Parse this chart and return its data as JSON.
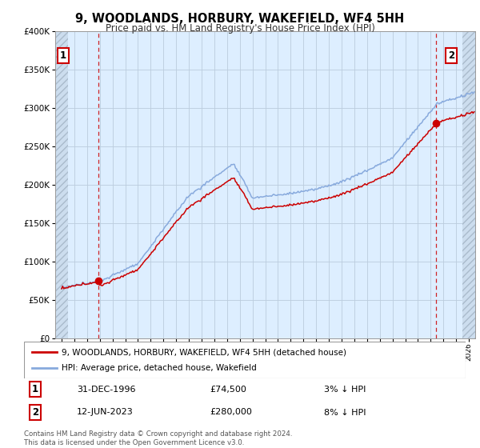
{
  "title": "9, WOODLANDS, HORBURY, WAKEFIELD, WF4 5HH",
  "subtitle": "Price paid vs. HM Land Registry's House Price Index (HPI)",
  "sale1_date": "31-DEC-1996",
  "sale1_price": 74500,
  "sale1_label": "1",
  "sale1_pct": "3% ↓ HPI",
  "sale2_date": "12-JUN-2023",
  "sale2_price": 280000,
  "sale2_label": "2",
  "sale2_pct": "8% ↓ HPI",
  "legend_line1": "9, WOODLANDS, HORBURY, WAKEFIELD, WF4 5HH (detached house)",
  "legend_line2": "HPI: Average price, detached house, Wakefield",
  "footer": "Contains HM Land Registry data © Crown copyright and database right 2024.\nThis data is licensed under the Open Government Licence v3.0.",
  "sale_color": "#cc0000",
  "hpi_color": "#88aadd",
  "chart_bg": "#ddeeff",
  "background_color": "#ffffff",
  "grid_color": "#bbccdd",
  "ylim": [
    0,
    400000
  ],
  "yticks": [
    0,
    50000,
    100000,
    150000,
    200000,
    250000,
    300000,
    350000,
    400000
  ],
  "xlim_start": 1993.5,
  "xlim_end": 2026.5,
  "sale1_time": 1996.917,
  "sale2_time": 2023.417,
  "hatch_left_end": 1994.5,
  "hatch_right_start": 2025.5
}
